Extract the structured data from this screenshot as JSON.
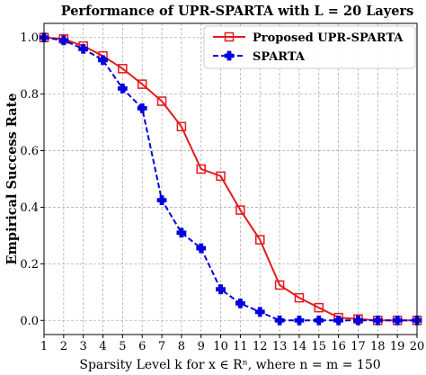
{
  "chart_data": {
    "type": "line",
    "title": "Performance of UPR-SPARTA with L = 20 Layers",
    "xlabel": "Sparsity Level k for x ∈ Rⁿ, where n = m = 150",
    "ylabel": "Empirical Success Rate",
    "x": [
      1,
      2,
      3,
      4,
      5,
      6,
      7,
      8,
      9,
      10,
      11,
      12,
      13,
      14,
      15,
      16,
      17,
      18,
      19,
      20
    ],
    "xlim": [
      1,
      20
    ],
    "ylim": [
      -0.05,
      1.05
    ],
    "xticks": [
      "1",
      "2",
      "3",
      "4",
      "5",
      "6",
      "7",
      "8",
      "9",
      "10",
      "11",
      "12",
      "13",
      "14",
      "15",
      "16",
      "17",
      "18",
      "19",
      "20"
    ],
    "yticks": [
      "0.0",
      "0.2",
      "0.4",
      "0.6",
      "0.8",
      "1.0"
    ],
    "ytick_values": [
      0.0,
      0.2,
      0.4,
      0.6,
      0.8,
      1.0
    ],
    "grid": true,
    "legend_position": "top-right",
    "series": [
      {
        "name": "Proposed UPR-SPARTA",
        "color": "#e41a1c",
        "line_style": "solid",
        "marker": "open-square",
        "values": [
          1.0,
          0.995,
          0.97,
          0.935,
          0.89,
          0.835,
          0.775,
          0.685,
          0.535,
          0.51,
          0.39,
          0.285,
          0.125,
          0.08,
          0.045,
          0.01,
          0.005,
          0.0,
          0.0,
          0.0
        ]
      },
      {
        "name": "SPARTA",
        "color": "#0000dd",
        "line_style": "dashed",
        "marker": "filled-plus",
        "values": [
          1.0,
          0.99,
          0.96,
          0.92,
          0.82,
          0.75,
          0.425,
          0.31,
          0.255,
          0.11,
          0.06,
          0.03,
          0.0,
          0.0,
          0.0,
          0.0,
          0.0,
          0.0,
          0.0,
          0.0
        ]
      }
    ]
  }
}
